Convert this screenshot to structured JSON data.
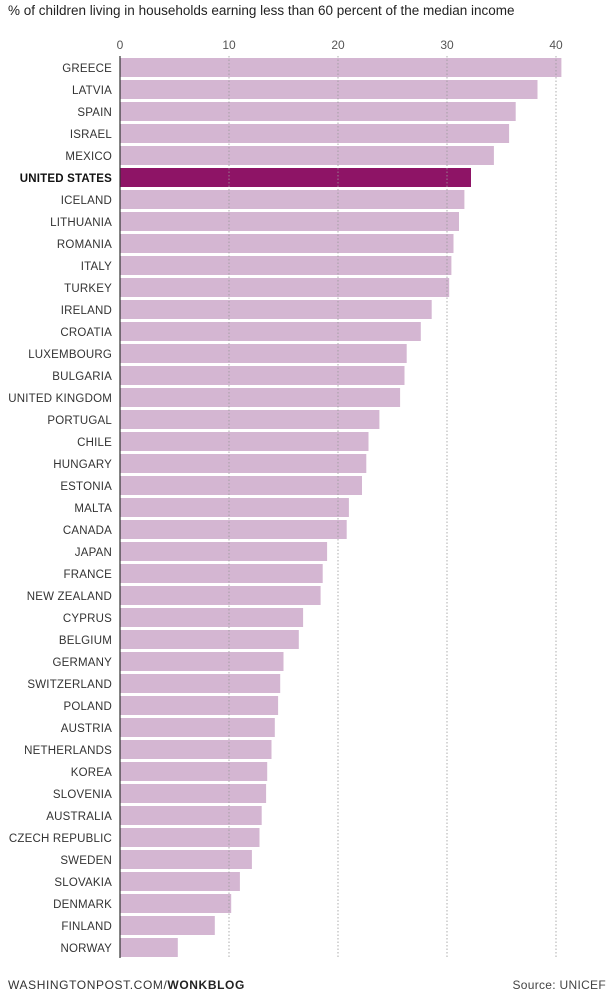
{
  "header": {
    "title": "% of children living in households earning less than 60 percent of the median income"
  },
  "chart_data": {
    "type": "bar",
    "orientation": "horizontal",
    "title": "% of children living in households earning less than 60 percent of the median income",
    "xlim": [
      0,
      41
    ],
    "ticks": [
      0,
      10,
      20,
      30,
      40
    ],
    "highlight": "UNITED STATES",
    "colors": {
      "bar": "#d4b6d2",
      "highlight": "#8e1466",
      "grid": "#9a9a9a",
      "axis": "#333333"
    },
    "categories": [
      "GREECE",
      "LATVIA",
      "SPAIN",
      "ISRAEL",
      "MEXICO",
      "UNITED STATES",
      "ICELAND",
      "LITHUANIA",
      "ROMANIA",
      "ITALY",
      "TURKEY",
      "IRELAND",
      "CROATIA",
      "LUXEMBOURG",
      "BULGARIA",
      "UNITED KINGDOM",
      "PORTUGAL",
      "CHILE",
      "HUNGARY",
      "ESTONIA",
      "MALTA",
      "CANADA",
      "JAPAN",
      "FRANCE",
      "NEW ZEALAND",
      "CYPRUS",
      "BELGIUM",
      "GERMANY",
      "SWITZERLAND",
      "POLAND",
      "AUSTRIA",
      "NETHERLANDS",
      "KOREA",
      "SLOVENIA",
      "AUSTRALIA",
      "CZECH REPUBLIC",
      "SWEDEN",
      "SLOVAKIA",
      "DENMARK",
      "FINLAND",
      "NORWAY"
    ],
    "values": [
      40.5,
      38.3,
      36.3,
      35.7,
      34.3,
      32.2,
      31.6,
      31.1,
      30.6,
      30.4,
      30.2,
      28.6,
      27.6,
      26.3,
      26.1,
      25.7,
      23.8,
      22.8,
      22.6,
      22.2,
      21.0,
      20.8,
      19.0,
      18.6,
      18.4,
      16.8,
      16.4,
      15.0,
      14.7,
      14.5,
      14.2,
      13.9,
      13.5,
      13.4,
      13.0,
      12.8,
      12.1,
      11.0,
      10.2,
      8.7,
      5.3
    ]
  },
  "footer": {
    "source_site": "WASHINGTONPOST.COM/",
    "source_section": "WONKBLOG",
    "credit": "Source: UNICEF"
  }
}
